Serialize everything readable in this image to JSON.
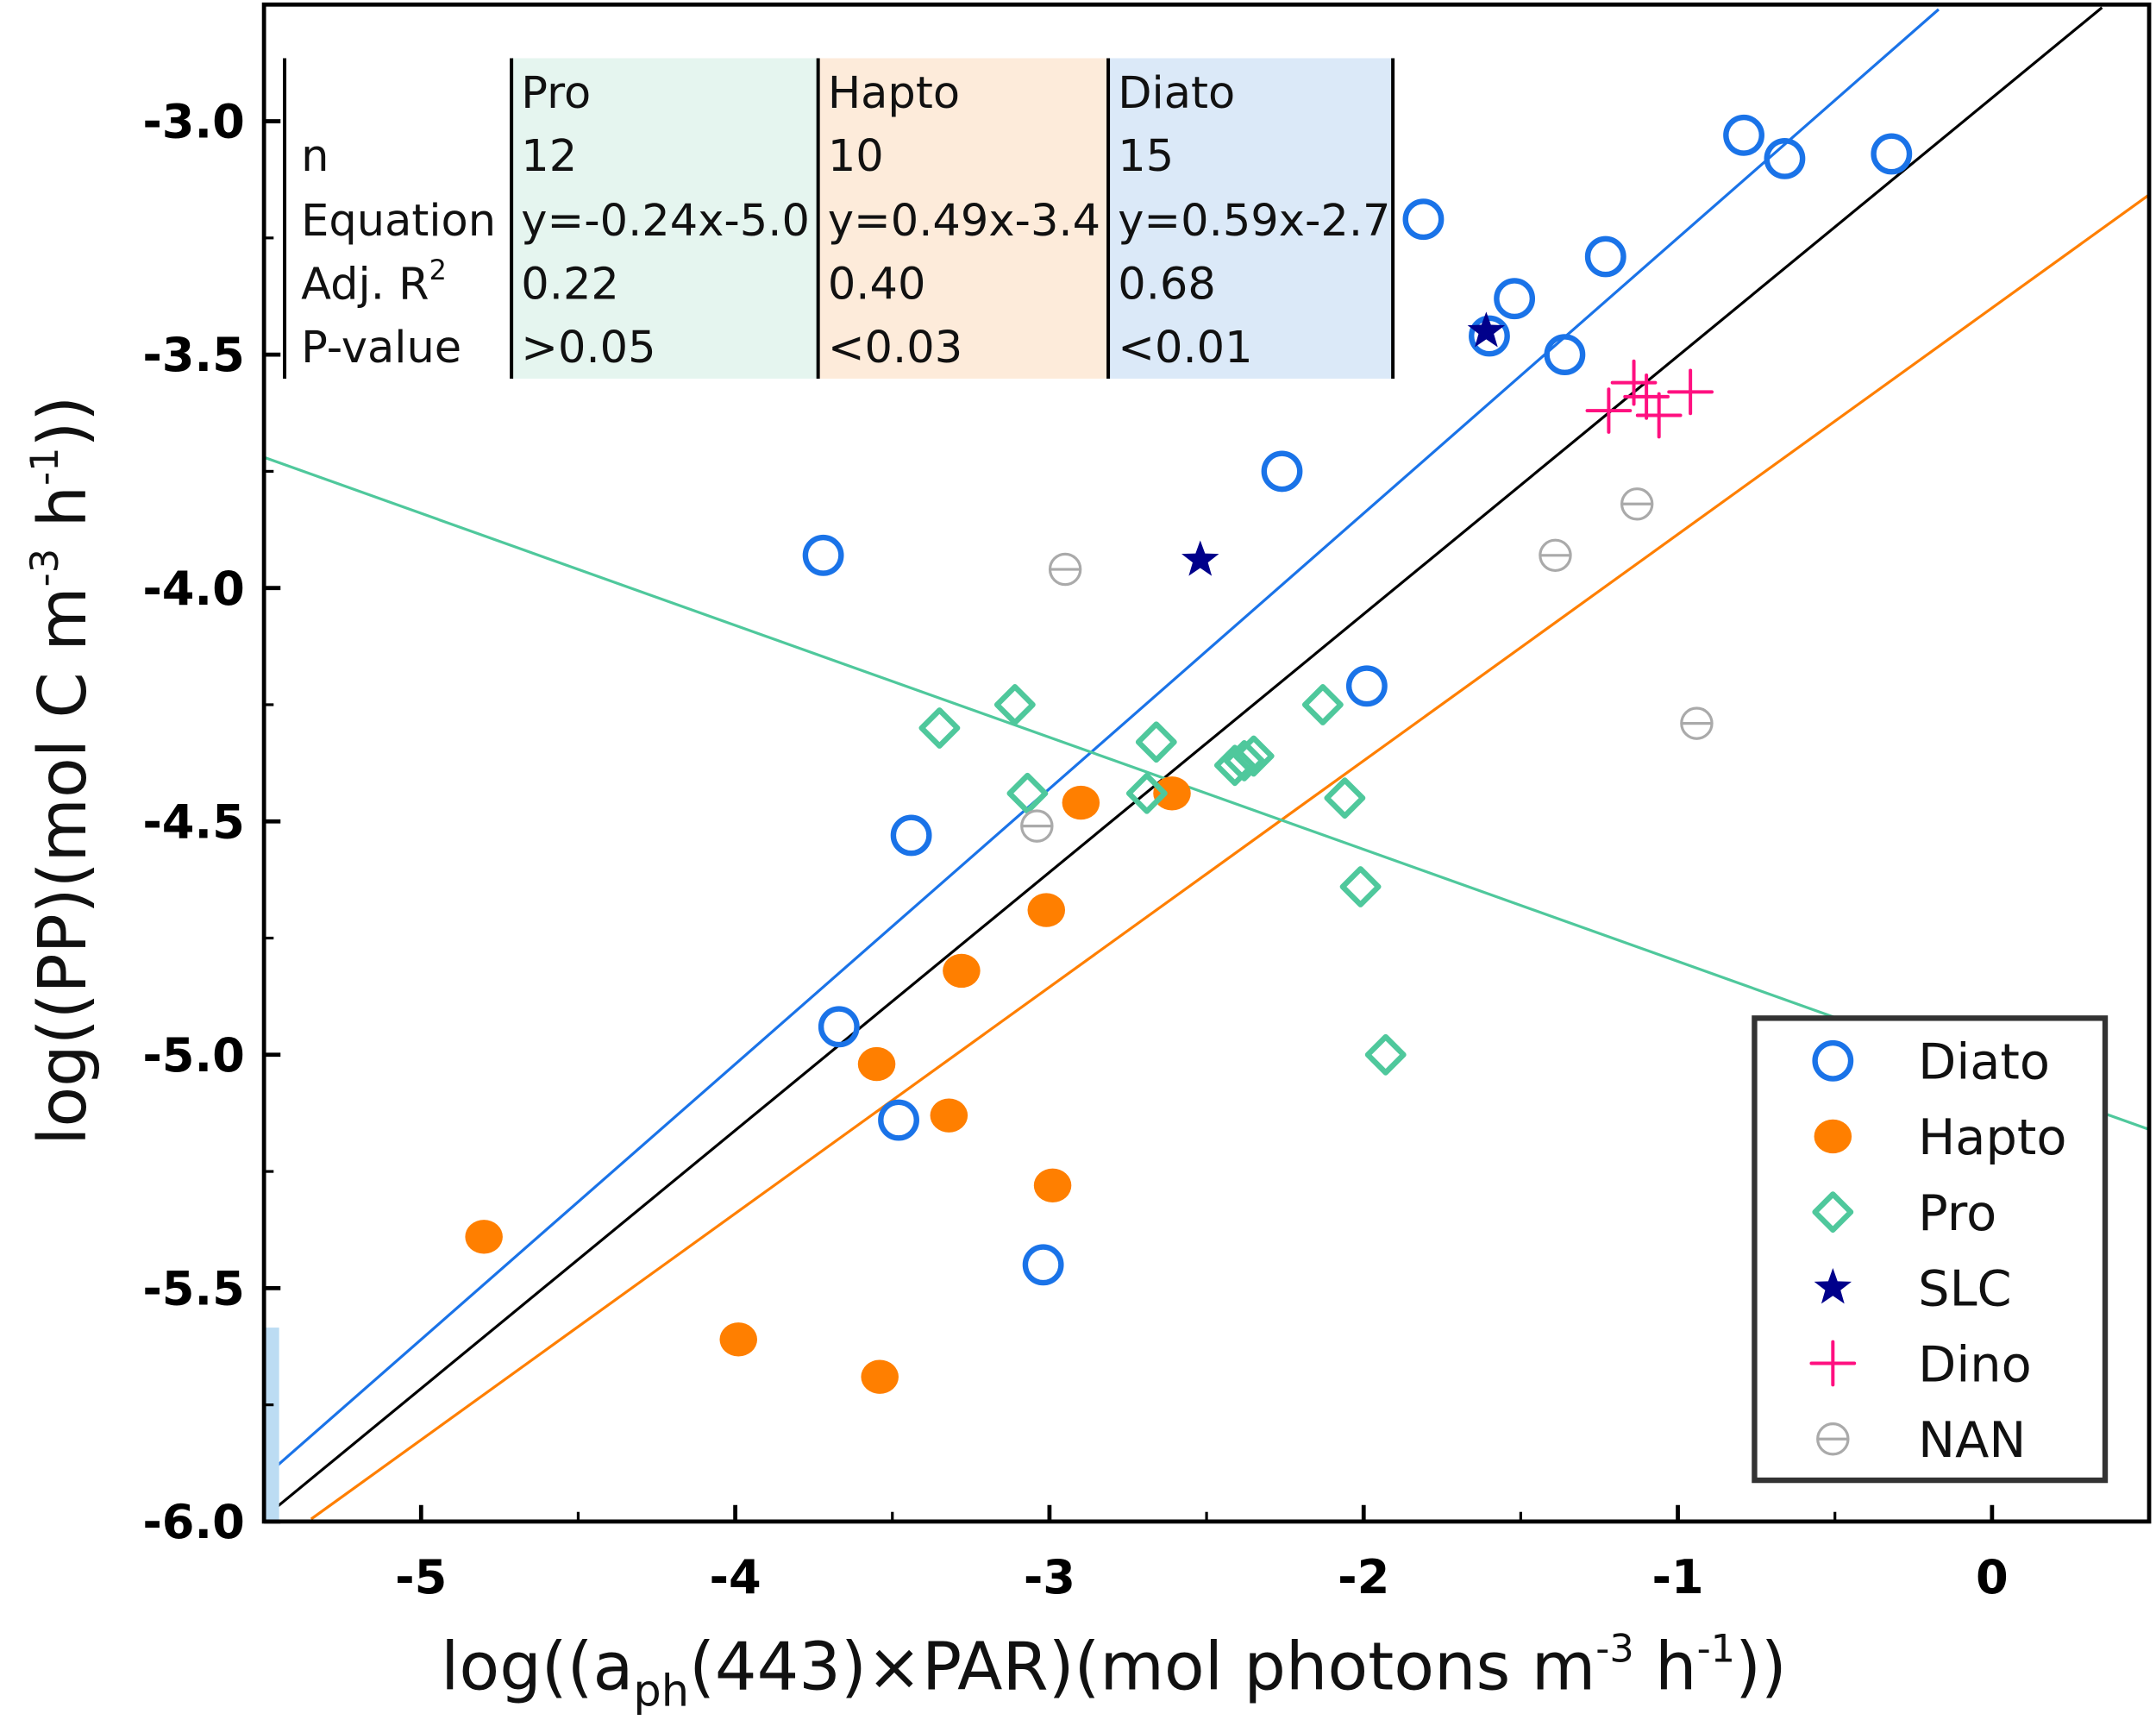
{
  "chart_data": {
    "type": "scatter",
    "title": "",
    "xlabel": {
      "pre": "log((a",
      "sub": "ph",
      "mid": "(443)×PAR)(mol photons m",
      "sup1": "-3",
      "mid2": " h",
      "sup2": "-1",
      "post": "))"
    },
    "ylabel": {
      "pre": "log((PP)(mol C m",
      "sup1": "-3",
      "mid": " h",
      "sup2": "-1",
      "post": "))"
    },
    "xlim": [
      -5.5,
      0.5
    ],
    "ylim": [
      -6.0,
      -2.75
    ],
    "xticks": [
      -5,
      -4,
      -3,
      -2,
      -1,
      0
    ],
    "xtick_labels": [
      "-5",
      "-4",
      "-3",
      "-2",
      "-1",
      "0"
    ],
    "yticks": [
      -3.0,
      -3.5,
      -4.0,
      -4.5,
      -5.0,
      -5.5,
      -6.0
    ],
    "ytick_labels": [
      "-3.0",
      "-3.5",
      "-4.0",
      "-4.5",
      "-5.0",
      "-5.5",
      "-6.0"
    ],
    "grid": false,
    "legend_position": "bottom-right",
    "series": [
      {
        "name": "Diato",
        "marker": "open-circle",
        "color": "#1a73e8",
        "points": [
          [
            -1.81,
            -3.21
          ],
          [
            -0.79,
            -3.03
          ],
          [
            -0.66,
            -3.08
          ],
          [
            -0.32,
            -3.07
          ],
          [
            -1.23,
            -3.29
          ],
          [
            -1.52,
            -3.38
          ],
          [
            -1.6,
            -3.46
          ],
          [
            -1.36,
            -3.5
          ],
          [
            -2.26,
            -3.75
          ],
          [
            -3.72,
            -3.93
          ],
          [
            -1.99,
            -4.21
          ],
          [
            -3.44,
            -4.53
          ],
          [
            -3.67,
            -4.94
          ],
          [
            -3.48,
            -5.14
          ],
          [
            -3.02,
            -5.45
          ]
        ]
      },
      {
        "name": "Hapto",
        "marker": "filled-circle",
        "color": "#ff7f00",
        "points": [
          [
            -4.8,
            -5.39
          ],
          [
            -3.99,
            -5.61
          ],
          [
            -3.54,
            -5.69
          ],
          [
            -3.55,
            -5.02
          ],
          [
            -3.32,
            -5.13
          ],
          [
            -3.28,
            -4.82
          ],
          [
            -3.01,
            -4.69
          ],
          [
            -2.99,
            -5.28
          ],
          [
            -2.9,
            -4.46
          ],
          [
            -2.61,
            -4.44
          ]
        ]
      },
      {
        "name": "Pro",
        "marker": "open-diamond",
        "color": "#4fc89c",
        "points": [
          [
            -3.35,
            -4.3
          ],
          [
            -3.11,
            -4.25
          ],
          [
            -3.07,
            -4.44
          ],
          [
            -2.66,
            -4.33
          ],
          [
            -2.69,
            -4.44
          ],
          [
            -2.41,
            -4.38
          ],
          [
            -2.38,
            -4.37
          ],
          [
            -2.35,
            -4.36
          ],
          [
            -2.13,
            -4.25
          ],
          [
            -2.06,
            -4.45
          ],
          [
            -2.01,
            -4.64
          ],
          [
            -1.93,
            -5.0
          ]
        ]
      },
      {
        "name": "SLC",
        "marker": "star",
        "color": "#00008b",
        "points": [
          [
            -2.52,
            -3.94
          ],
          [
            -1.61,
            -3.45
          ]
        ]
      },
      {
        "name": "Dino",
        "marker": "plus",
        "color": "#ff1080",
        "points": [
          [
            -1.22,
            -3.62
          ],
          [
            -1.14,
            -3.56
          ],
          [
            -1.06,
            -3.63
          ],
          [
            -0.96,
            -3.58
          ],
          [
            -1.1,
            -3.59
          ]
        ]
      },
      {
        "name": "NAN",
        "marker": "theta",
        "color": "#aaaaaa",
        "points": [
          [
            -2.95,
            -3.96
          ],
          [
            -3.04,
            -4.51
          ],
          [
            -1.39,
            -3.93
          ],
          [
            -1.13,
            -3.82
          ],
          [
            -0.94,
            -4.29
          ]
        ]
      }
    ],
    "fit_lines": [
      {
        "name": "Diato fit",
        "color": "#1a73e8",
        "slope": 0.59,
        "intercept": -2.66,
        "x_range": [
          -5.47,
          -0.17
        ]
      },
      {
        "name": "All fit",
        "color": "#000000",
        "slope": 0.553,
        "intercept": -2.95,
        "x_range": [
          -5.5,
          0.35
        ]
      },
      {
        "name": "Hapto fit",
        "color": "#ff7f00",
        "slope": 0.485,
        "intercept": -3.4,
        "x_range": [
          -5.35,
          0.5
        ]
      },
      {
        "name": "Pro fit",
        "color": "#4fc89c",
        "slope": -0.24,
        "intercept": -5.04,
        "x_range": [
          -5.5,
          0.5
        ]
      }
    ],
    "stats_table": {
      "row_labels": [
        "n",
        "Equation",
        "Adj. R",
        "P-value"
      ],
      "r2_sup": "2",
      "columns": [
        {
          "header": "Pro",
          "color": "#e5f5ef",
          "values": [
            "12",
            "y=-0.24x-5.0",
            "0.22",
            ">0.05"
          ]
        },
        {
          "header": "Hapto",
          "color": "#fdebda",
          "values": [
            "10",
            "y=0.49x-3.4",
            "0.40",
            "<0.03"
          ]
        },
        {
          "header": "Diato",
          "color": "#dbe9f8",
          "values": [
            "15",
            "y=0.59x-2.7",
            "0.68",
            "<0.01"
          ]
        }
      ]
    }
  }
}
